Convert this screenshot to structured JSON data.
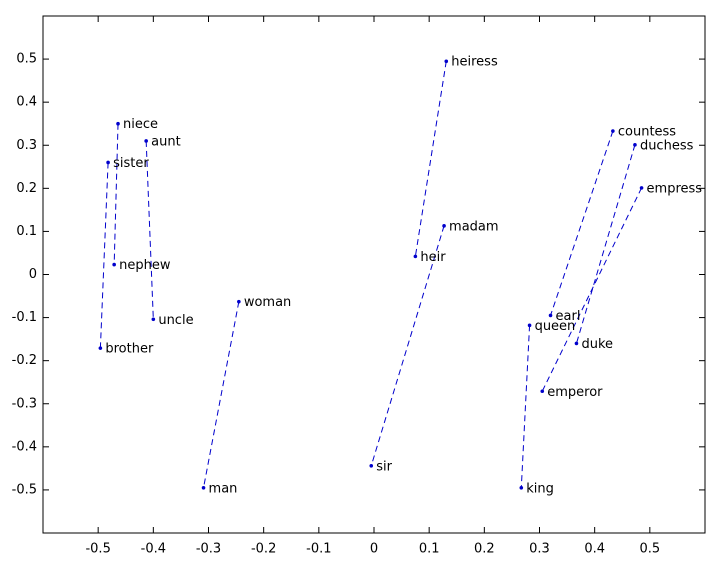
{
  "chart_data": {
    "type": "scatter",
    "series": [
      {
        "color": "#0000cc",
        "labels": [
          "niece",
          "nephew",
          "aunt",
          "uncle",
          "sister",
          "brother",
          "woman",
          "man",
          "heiress",
          "heir",
          "madam",
          "sir",
          "countess",
          "earl",
          "duchess",
          "duke",
          "empress",
          "emperor",
          "queen",
          "king"
        ],
        "x": [
          -0.464,
          -0.471,
          -0.413,
          -0.4,
          -0.482,
          -0.496,
          -0.245,
          -0.309,
          0.131,
          0.075,
          0.127,
          -0.005,
          0.433,
          0.32,
          0.473,
          0.367,
          0.485,
          0.305,
          0.282,
          0.267
        ],
        "values": [
          0.35,
          0.023,
          0.31,
          -0.104,
          0.26,
          -0.171,
          -0.063,
          -0.495,
          0.495,
          0.042,
          0.113,
          -0.444,
          0.333,
          -0.095,
          0.301,
          -0.16,
          0.201,
          -0.271,
          -0.118,
          -0.495
        ]
      }
    ],
    "xlim": [
      -0.6,
      0.6
    ],
    "ylim": [
      -0.6,
      0.6
    ],
    "xticks": [
      -0.5,
      -0.4,
      -0.3,
      -0.2,
      -0.1,
      0,
      0.1,
      0.2,
      0.3,
      0.4,
      0.5
    ],
    "yticks": [
      -0.5,
      -0.4,
      -0.3,
      -0.2,
      -0.1,
      0,
      0.1,
      0.2,
      0.3,
      0.4,
      0.5
    ],
    "grid": false
  }
}
